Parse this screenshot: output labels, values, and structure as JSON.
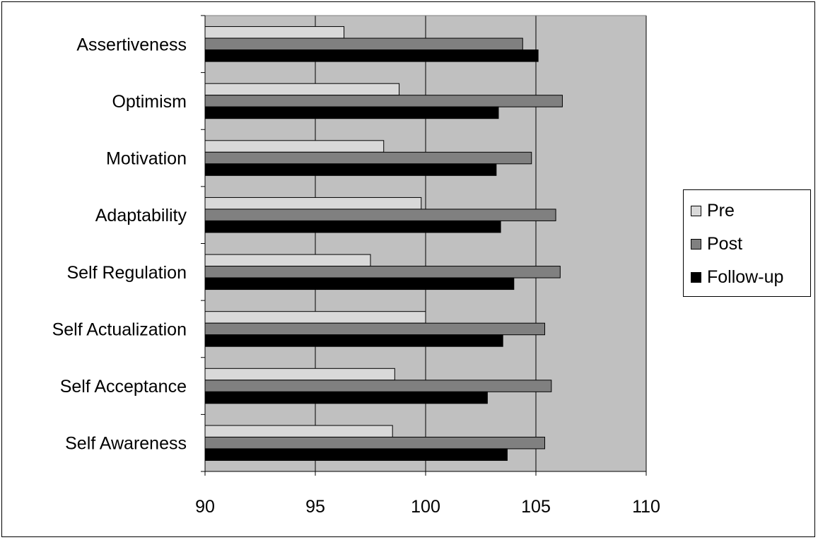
{
  "chart_data": {
    "type": "bar",
    "orientation": "horizontal",
    "categories": [
      "Self Awareness",
      "Self Acceptance",
      "Self Actualization",
      "Self Regulation",
      "Adaptability",
      "Motivation",
      "Optimism",
      "Assertiveness"
    ],
    "series": [
      {
        "name": "Pre",
        "color": "#d9d9d9",
        "values": [
          98.5,
          98.6,
          100.0,
          97.5,
          99.8,
          98.1,
          98.8,
          96.3
        ]
      },
      {
        "name": "Post",
        "color": "#808080",
        "values": [
          105.4,
          105.7,
          105.4,
          106.1,
          105.9,
          104.8,
          106.2,
          104.4
        ]
      },
      {
        "name": "Follow-up",
        "color": "#000000",
        "values": [
          103.7,
          102.8,
          103.5,
          104.0,
          103.4,
          103.2,
          103.3,
          105.1
        ]
      }
    ],
    "xlim": [
      90,
      110
    ],
    "xticks": [
      90,
      95,
      100,
      105,
      110
    ],
    "grid": true,
    "plot_background": "#c0c0c0",
    "legend_position": "right",
    "title": "",
    "xlabel": "",
    "ylabel": ""
  }
}
